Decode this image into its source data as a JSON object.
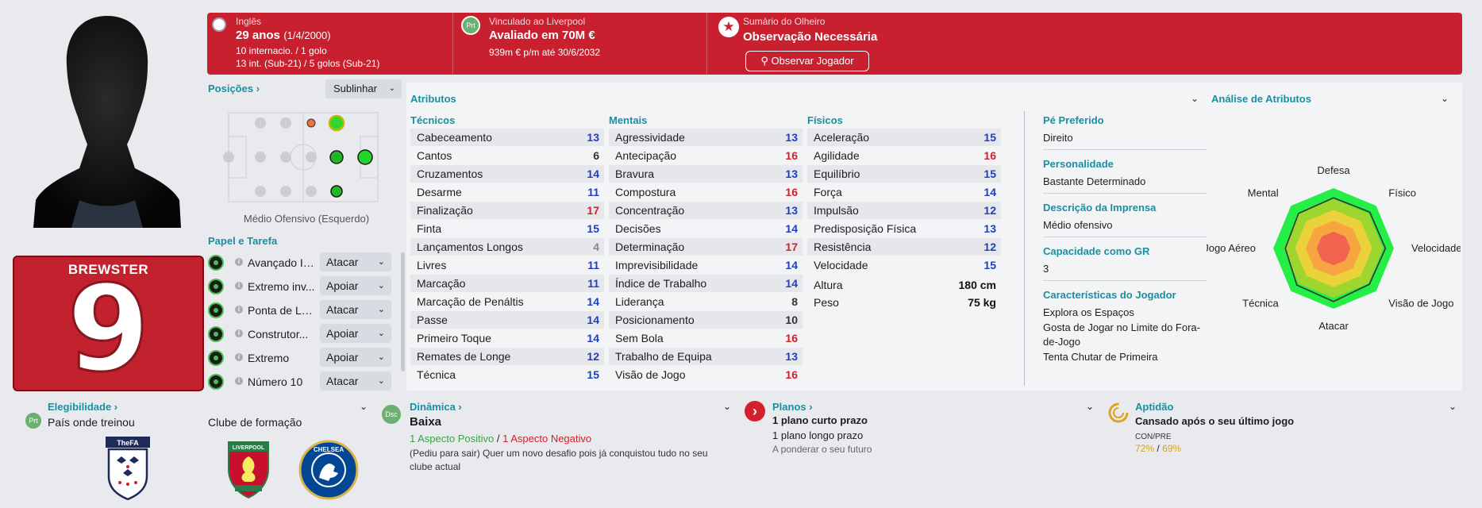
{
  "header": {
    "nationality_label": "Inglês",
    "age": "29 anos",
    "birthdate": "(1/4/2000)",
    "caps": "10 internacio. / 1 golo",
    "youth_caps": "13 int. (Sub-21) / 5 golos (Sub-21)",
    "contract_label": "Vinculado ao Liverpool",
    "contract_badge": "Prt",
    "value": "Avaliado em 70M €",
    "wage": "939m € p/m até 30/6/2032",
    "scout_label": "Sumário do Olheiro",
    "scout_status": "Observação Necessária",
    "scout_button": "Observar Jogador"
  },
  "shirt": {
    "name": "BREWSTER",
    "number": "9"
  },
  "positions": {
    "title": "Posições",
    "highlight_button": "Sublinhar",
    "role_label": "Médio Ofensivo (Esquerdo)"
  },
  "roles": {
    "title": "Papel e Tarefa",
    "items": [
      {
        "name": "Avançado In...",
        "duty": "Atacar"
      },
      {
        "name": "Extremo inv...",
        "duty": "Apoiar"
      },
      {
        "name": "Ponta de La...",
        "duty": "Atacar"
      },
      {
        "name": "Construtor...",
        "duty": "Apoiar"
      },
      {
        "name": "Extremo",
        "duty": "Apoiar"
      },
      {
        "name": "Número 10",
        "duty": "Atacar"
      }
    ]
  },
  "attributes": {
    "title": "Atributos",
    "technical": {
      "title": "Técnicos",
      "items": [
        {
          "name": "Cabeceamento",
          "value": "13",
          "color": "#1f3fbf"
        },
        {
          "name": "Cantos",
          "value": "6",
          "color": "#333333"
        },
        {
          "name": "Cruzamentos",
          "value": "14",
          "color": "#1f3fbf"
        },
        {
          "name": "Desarme",
          "value": "11",
          "color": "#1f3fbf"
        },
        {
          "name": "Finalização",
          "value": "17",
          "color": "#d0202c"
        },
        {
          "name": "Finta",
          "value": "15",
          "color": "#1f3fbf"
        },
        {
          "name": "Lançamentos Longos",
          "value": "4",
          "color": "#888888"
        },
        {
          "name": "Livres",
          "value": "11",
          "color": "#1f3fbf"
        },
        {
          "name": "Marcação",
          "value": "11",
          "color": "#1f3fbf"
        },
        {
          "name": "Marcação de Penáltis",
          "value": "14",
          "color": "#1f3fbf"
        },
        {
          "name": "Passe",
          "value": "14",
          "color": "#1f3fbf"
        },
        {
          "name": "Primeiro Toque",
          "value": "14",
          "color": "#1f3fbf"
        },
        {
          "name": "Remates de Longe",
          "value": "12",
          "color": "#1f3fbf"
        },
        {
          "name": "Técnica",
          "value": "15",
          "color": "#1f3fbf"
        }
      ]
    },
    "mental": {
      "title": "Mentais",
      "items": [
        {
          "name": "Agressividade",
          "value": "13",
          "color": "#1f3fbf"
        },
        {
          "name": "Antecipação",
          "value": "16",
          "color": "#d0202c"
        },
        {
          "name": "Bravura",
          "value": "13",
          "color": "#1f3fbf"
        },
        {
          "name": "Compostura",
          "value": "16",
          "color": "#d0202c"
        },
        {
          "name": "Concentração",
          "value": "13",
          "color": "#1f3fbf"
        },
        {
          "name": "Decisões",
          "value": "14",
          "color": "#1f3fbf"
        },
        {
          "name": "Determinação",
          "value": "17",
          "color": "#d0202c"
        },
        {
          "name": "Imprevisibilidade",
          "value": "14",
          "color": "#1f3fbf"
        },
        {
          "name": "Índice de Trabalho",
          "value": "14",
          "color": "#1f3fbf"
        },
        {
          "name": "Liderança",
          "value": "8",
          "color": "#333333"
        },
        {
          "name": "Posicionamento",
          "value": "10",
          "color": "#333333"
        },
        {
          "name": "Sem Bola",
          "value": "16",
          "color": "#d0202c"
        },
        {
          "name": "Trabalho de Equipa",
          "value": "13",
          "color": "#1f3fbf"
        },
        {
          "name": "Visão de Jogo",
          "value": "16",
          "color": "#d0202c"
        }
      ]
    },
    "physical": {
      "title": "Físicos",
      "items": [
        {
          "name": "Aceleração",
          "value": "15",
          "color": "#1f3fbf"
        },
        {
          "name": "Agilidade",
          "value": "16",
          "color": "#d0202c"
        },
        {
          "name": "Equilíbrio",
          "value": "15",
          "color": "#1f3fbf"
        },
        {
          "name": "Força",
          "value": "14",
          "color": "#1f3fbf"
        },
        {
          "name": "Impulsão",
          "value": "12",
          "color": "#1f3fbf"
        },
        {
          "name": "Predisposição Física",
          "value": "13",
          "color": "#1f3fbf"
        },
        {
          "name": "Resistência",
          "value": "12",
          "color": "#1f3fbf"
        },
        {
          "name": "Velocidade",
          "value": "15",
          "color": "#1f3fbf"
        }
      ],
      "height_label": "Altura",
      "height": "180 cm",
      "weight_label": "Peso",
      "weight": "75 kg"
    }
  },
  "info": {
    "foot_label": "Pé Preferido",
    "foot": "Direito",
    "personality_label": "Personalidade",
    "personality": "Bastante Determinado",
    "press_label": "Descrição da Imprensa",
    "press": "Médio ofensivo",
    "gk_label": "Capacidade como GR",
    "gk": "3",
    "traits_label": "Características do Jogador",
    "traits": [
      "Explora os Espaços",
      "Gosta de Jogar no Limite do Fora-de-Jogo",
      "Tenta Chutar de Primeira"
    ]
  },
  "analysis": {
    "title": "Análise de Atributos",
    "axes": [
      "Defesa",
      "Físico",
      "Velocidade",
      "Visão de Jogo",
      "Atacar",
      "Técnica",
      "Jogo Aéreo",
      "Mental"
    ]
  },
  "bottom": {
    "eligibility_title": "Elegibilidade",
    "eligibility_badge": "Prt",
    "eligibility_value": "País onde treinou",
    "club_formation_label": "Clube de formação",
    "dynamics_badge": "Dsc",
    "dynamics_title": "Dinâmica",
    "dynamics_value": "Baixa",
    "positive": "1 Aspecto Positivo",
    "slash": "/",
    "negative": "1 Aspecto Negativo",
    "dynamics_note": "(Pediu para sair) Quer um novo desafio pois já conquistou tudo no seu clube actual",
    "plans_title": "Planos",
    "plan_short": "1 plano curto prazo",
    "plan_long": "1 plano longo prazo",
    "plan_note": "A ponderar o seu futuro",
    "fitness_title": "Aptidão",
    "fitness_value": "Cansado após o seu último jogo",
    "fitness_label": "CON/PRE",
    "fitness_con": "72%",
    "fitness_slash": "/",
    "fitness_pre": "69%"
  },
  "colors": {
    "band": "#c8202f",
    "accent": "#1b8fa0",
    "positive": "#3aa341",
    "negative": "#d0202c"
  }
}
